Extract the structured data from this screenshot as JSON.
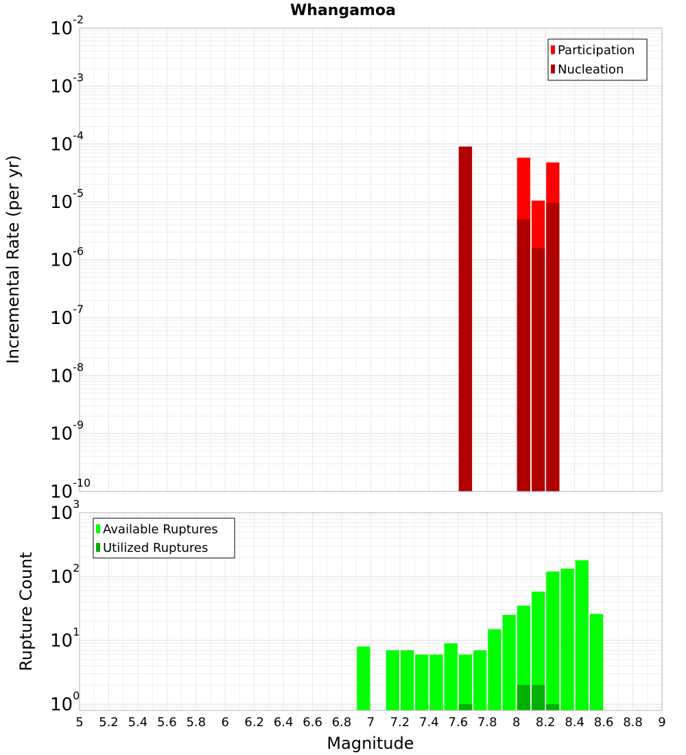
{
  "chart_data": [
    {
      "type": "bar",
      "title": "Whangamoa",
      "xlabel": "",
      "ylabel": "Incremental Rate (per yr)",
      "yscale": "log",
      "ylim": [
        1e-10,
        0.01
      ],
      "xlim": [
        5,
        9
      ],
      "grid": true,
      "legend_position": "top-right",
      "series": [
        {
          "name": "Participation",
          "color": "#ff0000",
          "points": [
            {
              "x": 7.65,
              "y": 9e-05
            },
            {
              "x": 8.05,
              "y": 5.8e-05
            },
            {
              "x": 8.15,
              "y": 1.05e-05
            },
            {
              "x": 8.25,
              "y": 4.8e-05
            }
          ]
        },
        {
          "name": "Nucleation",
          "color": "#b00000",
          "points": [
            {
              "x": 7.65,
              "y": 9e-05
            },
            {
              "x": 8.05,
              "y": 5e-06
            },
            {
              "x": 8.15,
              "y": 1.6e-06
            },
            {
              "x": 8.25,
              "y": 9.6e-06
            }
          ]
        }
      ],
      "y_ticks": [
        {
          "base": "10",
          "exp": "-10",
          "value": 1e-10
        },
        {
          "base": "10",
          "exp": "-9",
          "value": 1e-09
        },
        {
          "base": "10",
          "exp": "-8",
          "value": 1e-08
        },
        {
          "base": "10",
          "exp": "-7",
          "value": 1e-07
        },
        {
          "base": "10",
          "exp": "-6",
          "value": 1e-06
        },
        {
          "base": "10",
          "exp": "-5",
          "value": 1e-05
        },
        {
          "base": "10",
          "exp": "-4",
          "value": 0.0001
        },
        {
          "base": "10",
          "exp": "-3",
          "value": 0.001
        },
        {
          "base": "10",
          "exp": "-2",
          "value": 0.01
        }
      ]
    },
    {
      "type": "bar",
      "title": "",
      "xlabel": "Magnitude",
      "ylabel": "Rupture Count",
      "yscale": "log",
      "ylim": [
        0.8,
        1000
      ],
      "xlim": [
        5,
        9
      ],
      "grid": true,
      "legend_position": "top-left",
      "series": [
        {
          "name": "Available Ruptures",
          "color": "#00ff00",
          "points": [
            {
              "x": 6.95,
              "y": 8
            },
            {
              "x": 7.15,
              "y": 7
            },
            {
              "x": 7.25,
              "y": 7
            },
            {
              "x": 7.35,
              "y": 6
            },
            {
              "x": 7.45,
              "y": 6
            },
            {
              "x": 7.55,
              "y": 9
            },
            {
              "x": 7.65,
              "y": 6
            },
            {
              "x": 7.75,
              "y": 7
            },
            {
              "x": 7.85,
              "y": 15
            },
            {
              "x": 7.95,
              "y": 25
            },
            {
              "x": 8.05,
              "y": 35
            },
            {
              "x": 8.15,
              "y": 58
            },
            {
              "x": 8.25,
              "y": 120
            },
            {
              "x": 8.35,
              "y": 133
            },
            {
              "x": 8.45,
              "y": 180
            },
            {
              "x": 8.55,
              "y": 26
            }
          ]
        },
        {
          "name": "Utilized Ruptures",
          "color": "#00b000",
          "points": [
            {
              "x": 7.65,
              "y": 1
            },
            {
              "x": 8.05,
              "y": 2
            },
            {
              "x": 8.15,
              "y": 2
            },
            {
              "x": 8.25,
              "y": 1
            }
          ]
        }
      ],
      "y_ticks": [
        {
          "base": "10",
          "exp": "0",
          "value": 1
        },
        {
          "base": "10",
          "exp": "1",
          "value": 10
        },
        {
          "base": "10",
          "exp": "2",
          "value": 100
        },
        {
          "base": "10",
          "exp": "3",
          "value": 1000
        }
      ],
      "x_ticks": [
        "5",
        "5.2",
        "5.4",
        "5.6",
        "5.8",
        "6",
        "6.2",
        "6.4",
        "6.6",
        "6.8",
        "7",
        "7.2",
        "7.4",
        "7.6",
        "7.8",
        "8",
        "8.2",
        "8.4",
        "8.6",
        "8.8",
        "9"
      ]
    }
  ]
}
